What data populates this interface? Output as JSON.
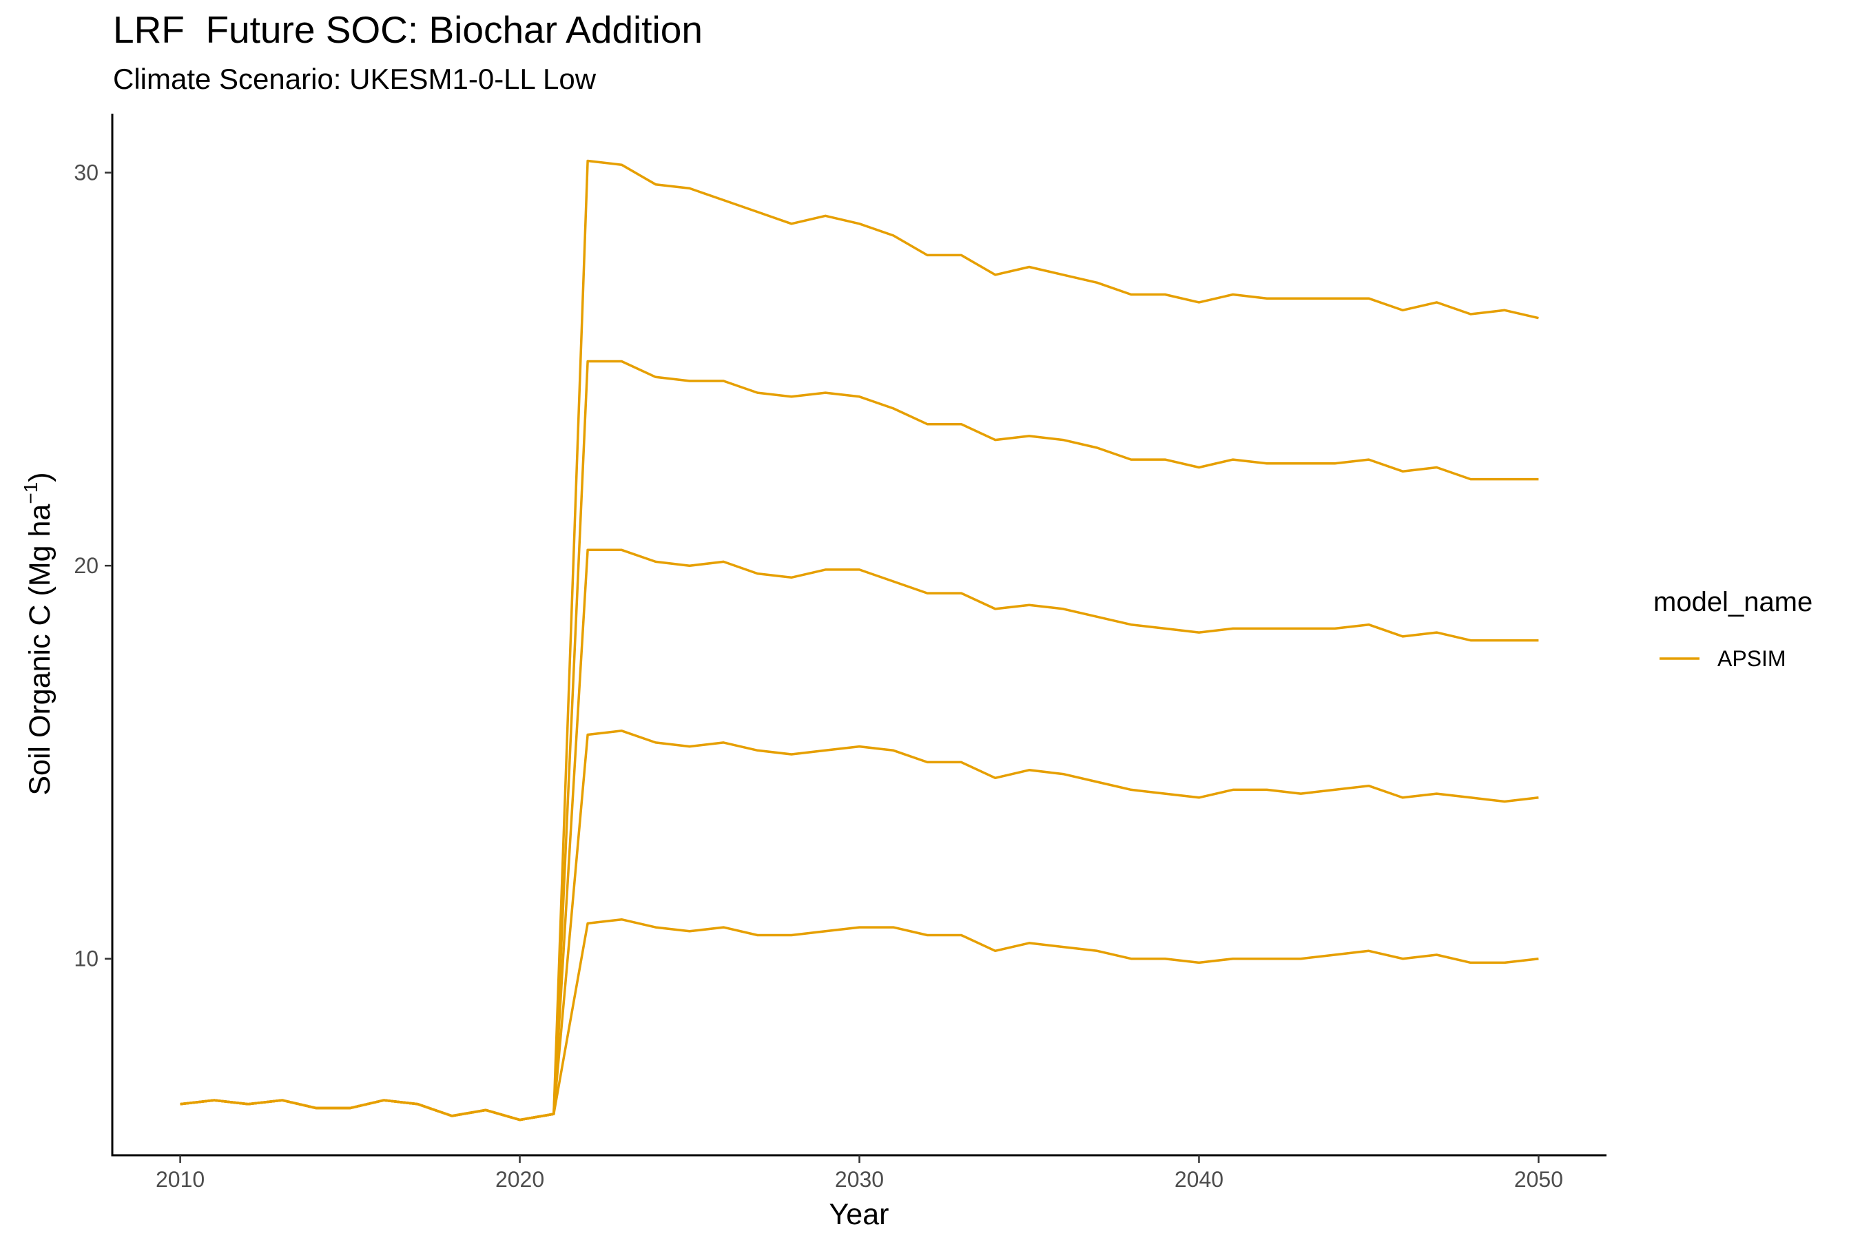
{
  "colors": {
    "series": "#E69F00",
    "axis": "#000000",
    "tick_text": "#4d4d4d"
  },
  "chart_data": {
    "type": "line",
    "title": "LRF  Future SOC: Biochar Addition",
    "subtitle": "Climate Scenario: UKESM1-0-LL Low",
    "xlabel": "Year",
    "ylabel_main": "Soil Organic C (Mg ha",
    "ylabel_sup": "−1",
    "ylabel_close": ")",
    "xlim": [
      2008,
      2052
    ],
    "ylim": [
      5.0,
      31.5
    ],
    "xticks": [
      2010,
      2020,
      2030,
      2040,
      2050
    ],
    "yticks": [
      10,
      20,
      30
    ],
    "grid": false,
    "legend": {
      "title": "model_name",
      "position": "right",
      "entries": [
        "APSIM"
      ]
    },
    "series": [
      {
        "name": "APSIM",
        "lines": [
          {
            "x": [
              2010,
              2011,
              2012,
              2013,
              2014,
              2015,
              2016,
              2017,
              2018,
              2019,
              2020,
              2021,
              2022,
              2023,
              2024,
              2025,
              2026,
              2027,
              2028,
              2029,
              2030,
              2031,
              2032,
              2033,
              2034,
              2035,
              2036,
              2037,
              2038,
              2039,
              2040,
              2041,
              2042,
              2043,
              2044,
              2045,
              2046,
              2047,
              2048,
              2049,
              2050
            ],
            "y": [
              6.3,
              6.4,
              6.3,
              6.4,
              6.2,
              6.2,
              6.4,
              6.3,
              6.0,
              6.15,
              5.9,
              6.05,
              30.3,
              30.2,
              29.7,
              29.6,
              29.3,
              29.0,
              28.7,
              28.9,
              28.7,
              28.4,
              27.9,
              27.9,
              27.4,
              27.6,
              27.4,
              27.2,
              26.9,
              26.9,
              26.7,
              26.9,
              26.8,
              26.8,
              26.8,
              26.8,
              26.5,
              26.7,
              26.4,
              26.5,
              26.3
            ]
          },
          {
            "x": [
              2010,
              2011,
              2012,
              2013,
              2014,
              2015,
              2016,
              2017,
              2018,
              2019,
              2020,
              2021,
              2022,
              2023,
              2024,
              2025,
              2026,
              2027,
              2028,
              2029,
              2030,
              2031,
              2032,
              2033,
              2034,
              2035,
              2036,
              2037,
              2038,
              2039,
              2040,
              2041,
              2042,
              2043,
              2044,
              2045,
              2046,
              2047,
              2048,
              2049,
              2050
            ],
            "y": [
              6.3,
              6.4,
              6.3,
              6.4,
              6.2,
              6.2,
              6.4,
              6.3,
              6.0,
              6.15,
              5.9,
              6.05,
              25.2,
              25.2,
              24.8,
              24.7,
              24.7,
              24.4,
              24.3,
              24.4,
              24.3,
              24.0,
              23.6,
              23.6,
              23.2,
              23.3,
              23.2,
              23.0,
              22.7,
              22.7,
              22.5,
              22.7,
              22.6,
              22.6,
              22.6,
              22.7,
              22.4,
              22.5,
              22.2,
              22.2,
              22.2
            ]
          },
          {
            "x": [
              2010,
              2011,
              2012,
              2013,
              2014,
              2015,
              2016,
              2017,
              2018,
              2019,
              2020,
              2021,
              2022,
              2023,
              2024,
              2025,
              2026,
              2027,
              2028,
              2029,
              2030,
              2031,
              2032,
              2033,
              2034,
              2035,
              2036,
              2037,
              2038,
              2039,
              2040,
              2041,
              2042,
              2043,
              2044,
              2045,
              2046,
              2047,
              2048,
              2049,
              2050
            ],
            "y": [
              6.3,
              6.4,
              6.3,
              6.4,
              6.2,
              6.2,
              6.4,
              6.3,
              6.0,
              6.15,
              5.9,
              6.05,
              20.4,
              20.4,
              20.1,
              20.0,
              20.1,
              19.8,
              19.7,
              19.9,
              19.9,
              19.6,
              19.3,
              19.3,
              18.9,
              19.0,
              18.9,
              18.7,
              18.5,
              18.4,
              18.3,
              18.4,
              18.4,
              18.4,
              18.4,
              18.5,
              18.2,
              18.3,
              18.1,
              18.1,
              18.1
            ]
          },
          {
            "x": [
              2010,
              2011,
              2012,
              2013,
              2014,
              2015,
              2016,
              2017,
              2018,
              2019,
              2020,
              2021,
              2022,
              2023,
              2024,
              2025,
              2026,
              2027,
              2028,
              2029,
              2030,
              2031,
              2032,
              2033,
              2034,
              2035,
              2036,
              2037,
              2038,
              2039,
              2040,
              2041,
              2042,
              2043,
              2044,
              2045,
              2046,
              2047,
              2048,
              2049,
              2050
            ],
            "y": [
              6.3,
              6.4,
              6.3,
              6.4,
              6.2,
              6.2,
              6.4,
              6.3,
              6.0,
              6.15,
              5.9,
              6.05,
              15.7,
              15.8,
              15.5,
              15.4,
              15.5,
              15.3,
              15.2,
              15.3,
              15.4,
              15.3,
              15.0,
              15.0,
              14.6,
              14.8,
              14.7,
              14.5,
              14.3,
              14.2,
              14.1,
              14.3,
              14.3,
              14.2,
              14.3,
              14.4,
              14.1,
              14.2,
              14.1,
              14.0,
              14.1
            ]
          },
          {
            "x": [
              2010,
              2011,
              2012,
              2013,
              2014,
              2015,
              2016,
              2017,
              2018,
              2019,
              2020,
              2021,
              2022,
              2023,
              2024,
              2025,
              2026,
              2027,
              2028,
              2029,
              2030,
              2031,
              2032,
              2033,
              2034,
              2035,
              2036,
              2037,
              2038,
              2039,
              2040,
              2041,
              2042,
              2043,
              2044,
              2045,
              2046,
              2047,
              2048,
              2049,
              2050
            ],
            "y": [
              6.3,
              6.4,
              6.3,
              6.4,
              6.2,
              6.2,
              6.4,
              6.3,
              6.0,
              6.15,
              5.9,
              6.05,
              10.9,
              11.0,
              10.8,
              10.7,
              10.8,
              10.6,
              10.6,
              10.7,
              10.8,
              10.8,
              10.6,
              10.6,
              10.2,
              10.4,
              10.3,
              10.2,
              10.0,
              10.0,
              9.9,
              10.0,
              10.0,
              10.0,
              10.1,
              10.2,
              10.0,
              10.1,
              9.9,
              9.9,
              10.0
            ]
          }
        ]
      }
    ]
  }
}
